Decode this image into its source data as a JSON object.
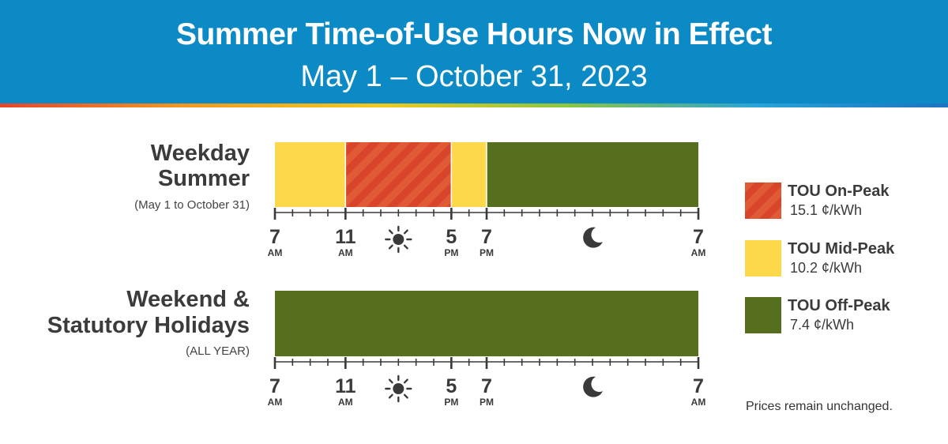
{
  "header": {
    "title": "Summer Time-of-Use Hours Now in Effect",
    "subtitle": "May 1 – October 31, 2023"
  },
  "colors": {
    "on_peak": "#d9452b",
    "mid_peak": "#fdd84a",
    "off_peak": "#566f1e",
    "header_bg": "#0b8ac6"
  },
  "rows": [
    {
      "label_line1": "Weekday",
      "label_line2": "Summer",
      "note": "(May 1 to October 31)",
      "segments": [
        {
          "start_hour": 7,
          "end_hour": 11,
          "period": "mid_peak"
        },
        {
          "start_hour": 11,
          "end_hour": 17,
          "period": "on_peak"
        },
        {
          "start_hour": 17,
          "end_hour": 19,
          "period": "mid_peak"
        },
        {
          "start_hour": 19,
          "end_hour": 31,
          "period": "off_peak"
        }
      ]
    },
    {
      "label_line1": "Weekend &",
      "label_line2": "Statutory Holidays",
      "note": "(ALL YEAR)",
      "segments": [
        {
          "start_hour": 7,
          "end_hour": 31,
          "period": "off_peak"
        }
      ]
    }
  ],
  "axis": {
    "start_hour": 7,
    "end_hour": 31,
    "labels": [
      {
        "hour": 7,
        "num": "7",
        "ampm": "AM"
      },
      {
        "hour": 11,
        "num": "11",
        "ampm": "AM"
      },
      {
        "hour": 17,
        "num": "5",
        "ampm": "PM"
      },
      {
        "hour": 19,
        "num": "7",
        "ampm": "PM"
      },
      {
        "hour": 31,
        "num": "7",
        "ampm": "AM"
      }
    ],
    "sun_icon_hour": 14,
    "moon_icon_hour": 25
  },
  "legend": [
    {
      "name": "TOU On-Peak",
      "price": "15.1 ¢/kWh",
      "period": "on_peak"
    },
    {
      "name": "TOU Mid-Peak",
      "price": "10.2 ¢/kWh",
      "period": "mid_peak"
    },
    {
      "name": "TOU Off-Peak",
      "price": "7.4 ¢/kWh",
      "period": "off_peak"
    }
  ],
  "footer_note": "Prices remain unchanged."
}
